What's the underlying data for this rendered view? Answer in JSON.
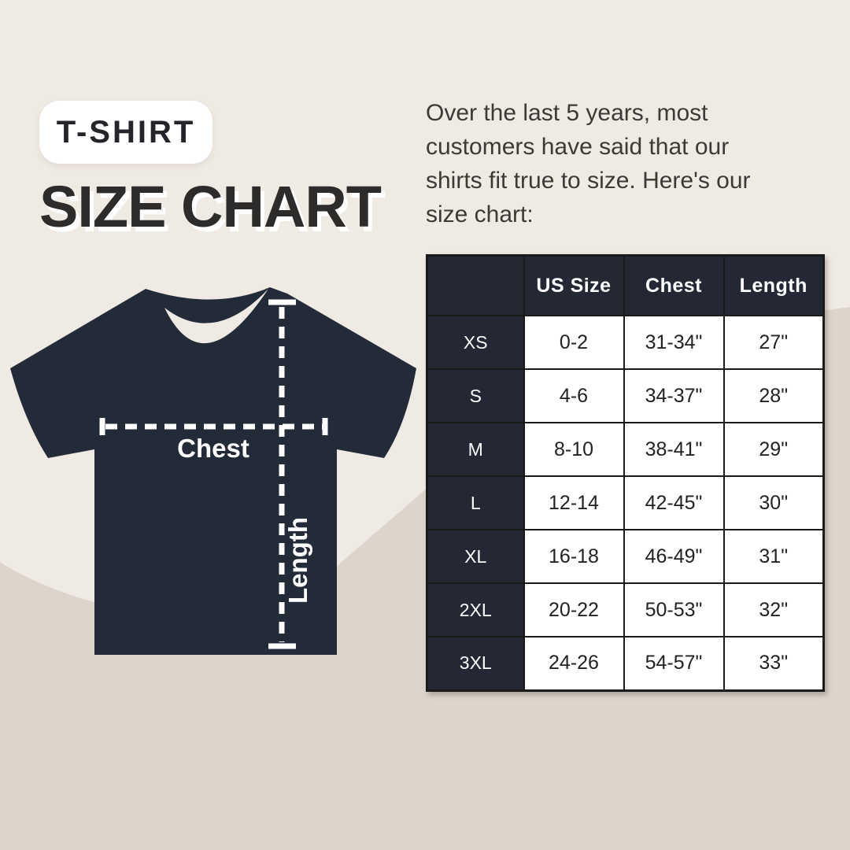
{
  "badge": {
    "label": "T-SHIRT"
  },
  "title": "SIZE CHART",
  "intro_lines": [
    "Over the last 5 years, most",
    "customers have said that our",
    "shirts fit true to size. Here's our",
    "size chart:"
  ],
  "diagram": {
    "chest_label": "Chest",
    "length_label": "Length"
  },
  "chart_data": {
    "type": "table",
    "columns": [
      "",
      "US Size",
      "Chest",
      "Length"
    ],
    "rows": [
      [
        "XS",
        "0-2",
        "31-34\"",
        "27\""
      ],
      [
        "S",
        "4-6",
        "34-37\"",
        "28\""
      ],
      [
        "M",
        "8-10",
        "38-41\"",
        "29\""
      ],
      [
        "L",
        "12-14",
        "42-45\"",
        "30\""
      ],
      [
        "XL",
        "16-18",
        "46-49\"",
        "31\""
      ],
      [
        "2XL",
        "20-22",
        "50-53\"",
        "32\""
      ],
      [
        "3XL",
        "24-26",
        "54-57\"",
        "33\""
      ]
    ]
  },
  "colors": {
    "background_light": "#EFEAE3",
    "background_shade": "#DBD5CC",
    "navy": "#242B38",
    "table_header": "#232834",
    "white": "#FFFFFF",
    "title_text": "#2E2C2A",
    "body_text": "#3C3936"
  }
}
